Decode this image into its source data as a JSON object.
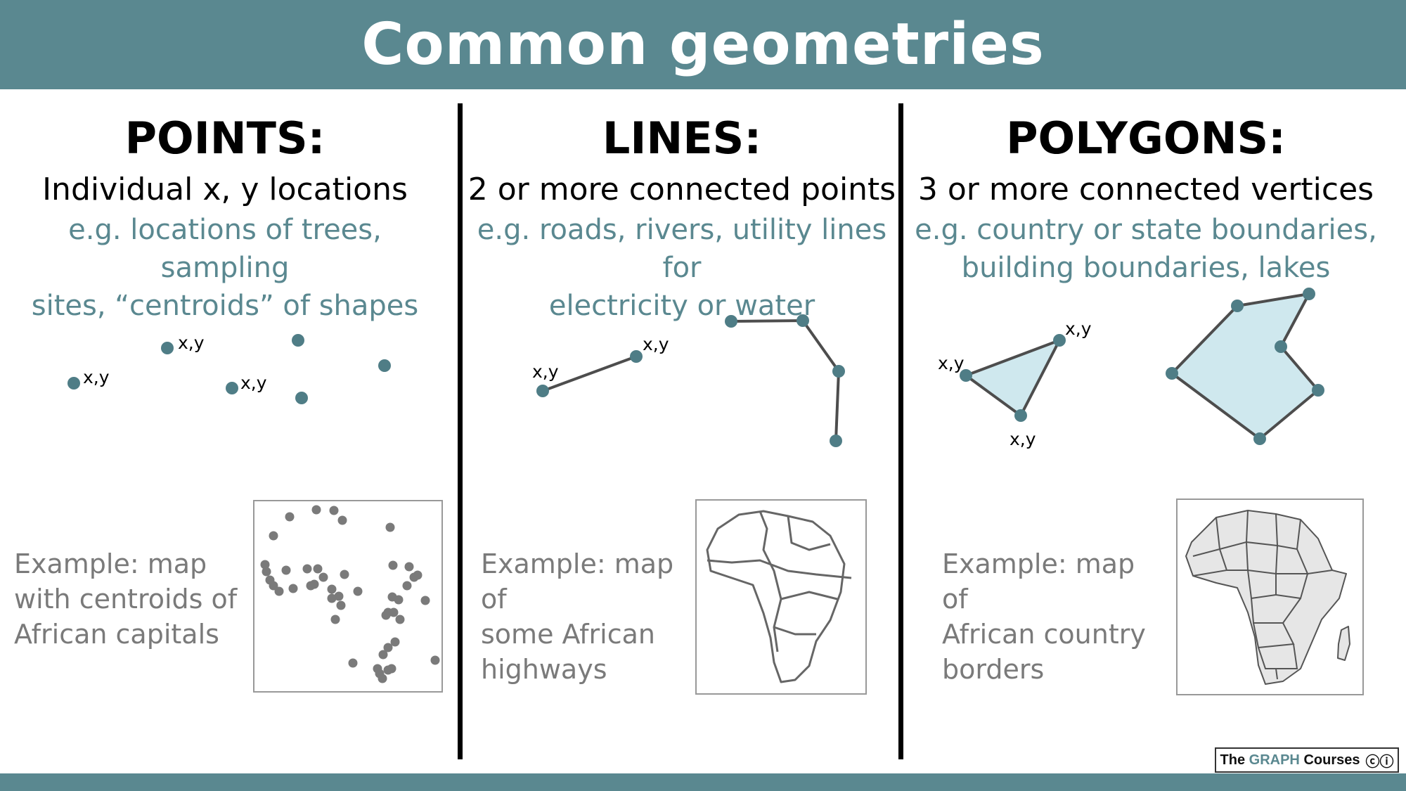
{
  "title": "Common geometries",
  "columns": [
    {
      "heading": "POINTS:",
      "subtitle": "Individual x, y locations",
      "examples_line1": "e.g. locations of trees, sampling",
      "examples_line2": "sites, “centroids” of shapes",
      "map_caption_line1": "Example: map",
      "map_caption_line2": "with centroids of",
      "map_caption_line3": "African capitals"
    },
    {
      "heading": "LINES:",
      "subtitle": "2 or more connected points",
      "examples_line1": "e.g. roads, rivers, utility lines for",
      "examples_line2": "electricity or water",
      "map_caption_line1": "Example: map of",
      "map_caption_line2": "some African",
      "map_caption_line3": "highways"
    },
    {
      "heading": "POLYGONS:",
      "subtitle": "3 or more connected vertices",
      "examples_line1": "e.g. country or state boundaries,",
      "examples_line2": "building boundaries, lakes",
      "map_caption_line1": "Example: map of",
      "map_caption_line2": "African country",
      "map_caption_line3": "borders"
    }
  ],
  "coord_label": "x,y",
  "badge": {
    "part1": "The",
    "part2": "GRAPH",
    "part3": "Courses",
    "cc": "ⓒⓘ"
  },
  "colors": {
    "header": "#5a8890",
    "point": "#4f7d86",
    "polygon_fill": "#cfe8ee",
    "example_text": "#5a8890"
  }
}
